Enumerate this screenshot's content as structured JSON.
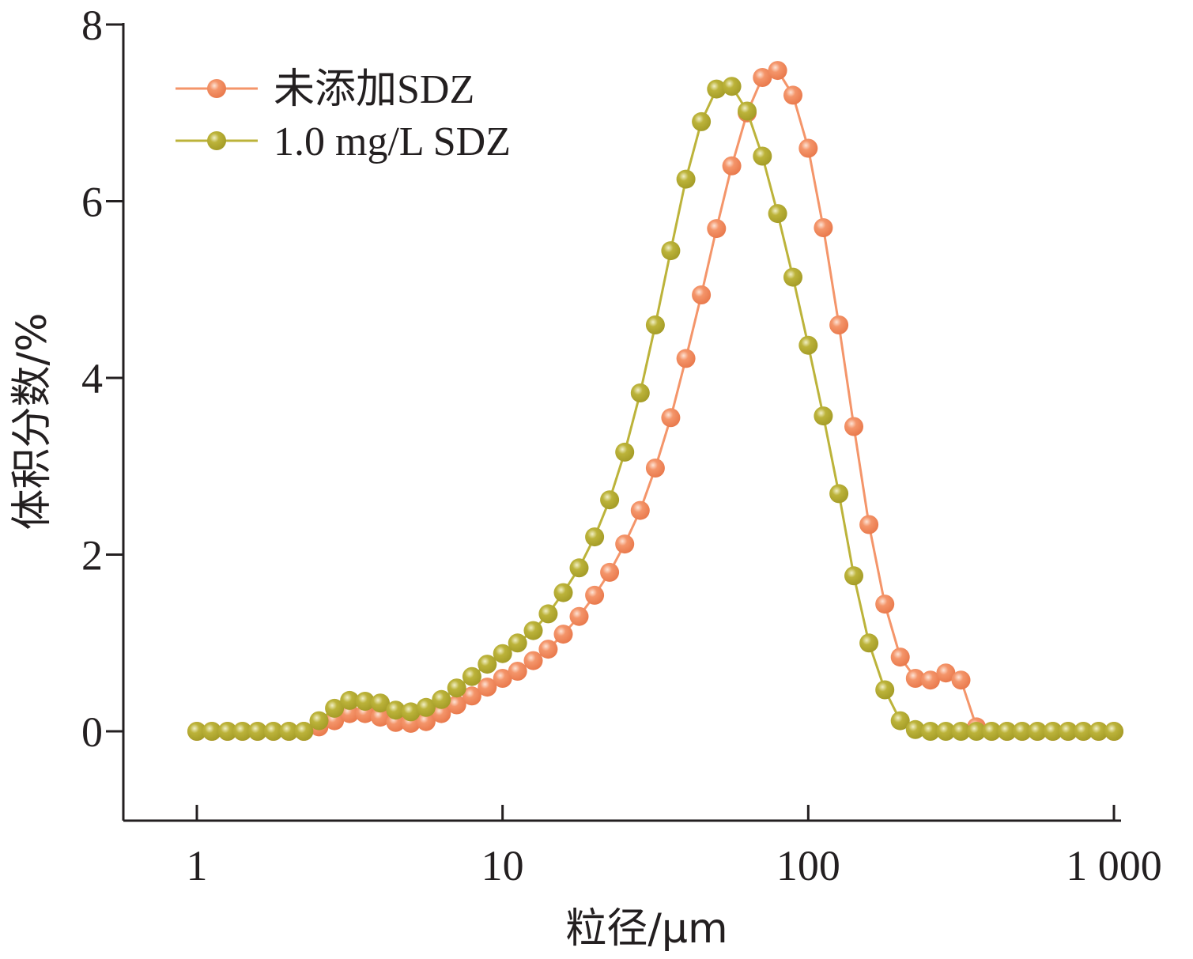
{
  "chart_data": {
    "type": "line",
    "title": "",
    "xlabel": "粒径/μm",
    "ylabel": "体积分数/%",
    "xscale": "log",
    "xlim": [
      0.58,
      1150
    ],
    "ylim": [
      -1,
      8
    ],
    "xticks": [
      1,
      10,
      100,
      1000
    ],
    "xtick_labels": [
      "1",
      "10",
      "100",
      "1 000"
    ],
    "yticks": [
      0,
      2,
      4,
      6,
      8
    ],
    "ytick_labels": [
      "0",
      "2",
      "4",
      "6",
      "8"
    ],
    "grid": false,
    "legend_position": "top-left",
    "series": [
      {
        "name": "未添加SDZ",
        "color": "#f4956a",
        "x": [
          1,
          1.12,
          1.26,
          1.41,
          1.58,
          1.78,
          2,
          2.24,
          2.51,
          2.82,
          3.16,
          3.55,
          3.98,
          4.47,
          5.01,
          5.62,
          6.31,
          7.08,
          7.94,
          8.91,
          10,
          11.2,
          12.6,
          14.1,
          15.8,
          17.8,
          20,
          22.4,
          25.1,
          28.2,
          31.6,
          35.5,
          39.8,
          44.7,
          50.1,
          56.2,
          63.1,
          70.8,
          79.4,
          89.1,
          100,
          112,
          126,
          141,
          158,
          178,
          200,
          224,
          251,
          282,
          316,
          355,
          398,
          447,
          501,
          562,
          631,
          708,
          794,
          891,
          1000
        ],
        "y": [
          0,
          0,
          0,
          0,
          0,
          0,
          0,
          0,
          0.05,
          0.12,
          0.2,
          0.2,
          0.16,
          0.1,
          0.09,
          0.11,
          0.2,
          0.3,
          0.4,
          0.5,
          0.6,
          0.68,
          0.8,
          0.93,
          1.1,
          1.3,
          1.54,
          1.8,
          2.12,
          2.5,
          2.98,
          3.55,
          4.22,
          4.94,
          5.69,
          6.4,
          7.0,
          7.4,
          7.48,
          7.2,
          6.6,
          5.7,
          4.6,
          3.45,
          2.34,
          1.44,
          0.84,
          0.6,
          0.58,
          0.66,
          0.58,
          0.05,
          0,
          0,
          0,
          0,
          0,
          0,
          0,
          0,
          0
        ]
      },
      {
        "name": "1.0 mg/L SDZ",
        "color": "#bcb33a",
        "x": [
          1,
          1.12,
          1.26,
          1.41,
          1.58,
          1.78,
          2,
          2.24,
          2.51,
          2.82,
          3.16,
          3.55,
          3.98,
          4.47,
          5.01,
          5.62,
          6.31,
          7.08,
          7.94,
          8.91,
          10,
          11.2,
          12.6,
          14.1,
          15.8,
          17.8,
          20,
          22.4,
          25.1,
          28.2,
          31.6,
          35.5,
          39.8,
          44.7,
          50.1,
          56.2,
          63.1,
          70.8,
          79.4,
          89.1,
          100,
          112,
          126,
          141,
          158,
          178,
          200,
          224,
          251,
          282,
          316,
          355,
          398,
          447,
          501,
          562,
          631,
          708,
          794,
          891,
          1000
        ],
        "y": [
          0,
          0,
          0,
          0,
          0,
          0,
          0,
          0,
          0.12,
          0.26,
          0.35,
          0.34,
          0.32,
          0.24,
          0.22,
          0.27,
          0.36,
          0.49,
          0.62,
          0.76,
          0.88,
          1.0,
          1.14,
          1.33,
          1.57,
          1.85,
          2.2,
          2.62,
          3.16,
          3.83,
          4.6,
          5.44,
          6.25,
          6.9,
          7.27,
          7.3,
          7.02,
          6.51,
          5.86,
          5.14,
          4.37,
          3.57,
          2.69,
          1.76,
          1.0,
          0.47,
          0.12,
          0.02,
          0,
          0,
          0,
          0,
          0,
          0,
          0,
          0,
          0,
          0,
          0,
          0,
          0
        ]
      }
    ]
  }
}
